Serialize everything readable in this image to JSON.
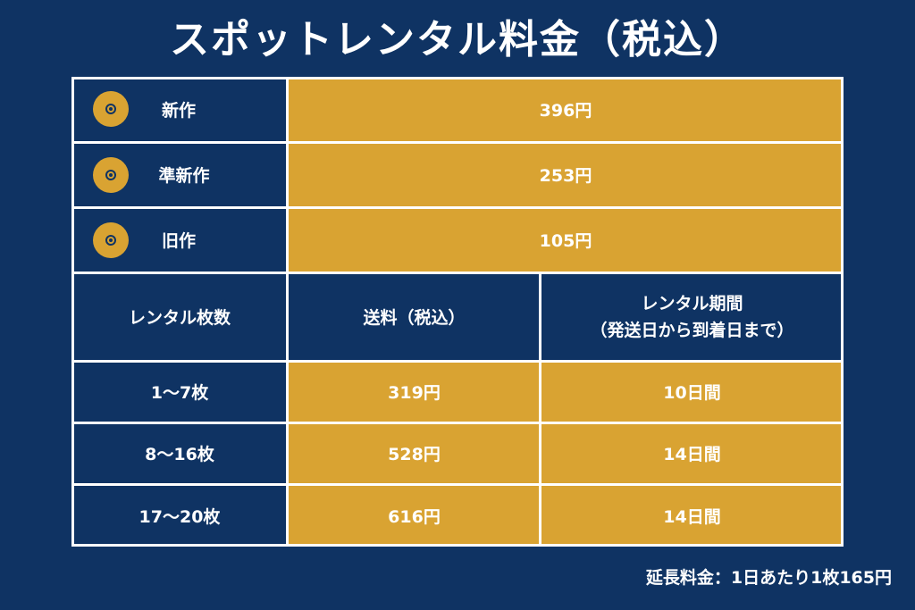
{
  "title": "スポットレンタル料金（税込）",
  "price_rows": [
    {
      "label": "新作",
      "price": "396円",
      "icon": "disc-icon"
    },
    {
      "label": "準新作",
      "price": "253円",
      "icon": "disc-icon"
    },
    {
      "label": "旧作",
      "price": "105円",
      "icon": "disc-icon"
    }
  ],
  "shipping_header": {
    "count": "レンタル枚数",
    "fee": "送料（税込）",
    "period_line1": "レンタル期間",
    "period_line2": "（発送日から到着日まで）"
  },
  "shipping_rows": [
    {
      "count": "1〜7枚",
      "fee": "319円",
      "period": "10日間"
    },
    {
      "count": "8〜16枚",
      "fee": "528円",
      "period": "14日間"
    },
    {
      "count": "17〜20枚",
      "fee": "616円",
      "period": "14日間"
    }
  ],
  "footnote": "延長料金：1日あたり1枚165円",
  "colors": {
    "navy": "#0f3363",
    "gold": "#d9a332",
    "line": "#ffffff"
  }
}
